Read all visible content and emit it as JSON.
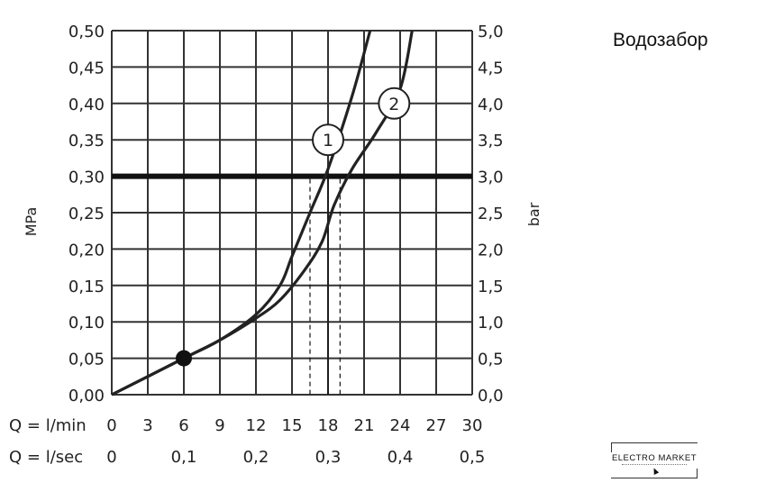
{
  "page": {
    "title": "Водозабор",
    "logo_text": "ELECTRO MARKET"
  },
  "chart_data": {
    "type": "line",
    "title": "",
    "xlabel": "",
    "ylabel_left": "MPa",
    "ylabel_right": "bar",
    "xlim": [
      0,
      30
    ],
    "ylim": [
      0,
      0.5
    ],
    "grid": true,
    "x_axis_rows": [
      {
        "label": "Q = l/min",
        "ticks": [
          "0",
          "3",
          "6",
          "9",
          "12",
          "15",
          "18",
          "21",
          "24",
          "27",
          "30"
        ],
        "values": [
          0,
          3,
          6,
          9,
          12,
          15,
          18,
          21,
          24,
          27,
          30
        ]
      },
      {
        "label": "Q = l/sec",
        "ticks": [
          "0",
          "0,1",
          "0,2",
          "0,3",
          "0,4",
          "0,5"
        ],
        "values": [
          0,
          6,
          12,
          18,
          24,
          30
        ]
      }
    ],
    "y_left_ticks": [
      "0,00",
      "0,05",
      "0,10",
      "0,15",
      "0,20",
      "0,25",
      "0,30",
      "0,35",
      "0,40",
      "0,45",
      "0,50"
    ],
    "y_right_ticks": [
      "0,0",
      "0,5",
      "1,0",
      "1,5",
      "2,0",
      "2,5",
      "3,0",
      "3,5",
      "4,0",
      "4,5",
      "5,0"
    ],
    "y_tick_values": [
      0,
      0.05,
      0.1,
      0.15,
      0.2,
      0.25,
      0.3,
      0.35,
      0.4,
      0.45,
      0.5
    ],
    "reference_line": {
      "y": 0.3
    },
    "series": [
      {
        "name": "1",
        "x": [
          0,
          6,
          9,
          12,
          14,
          15,
          16.5,
          18,
          20,
          21.5
        ],
        "y": [
          0,
          0.05,
          0.075,
          0.11,
          0.15,
          0.19,
          0.25,
          0.31,
          0.41,
          0.5
        ]
      },
      {
        "name": "2",
        "x": [
          0,
          6,
          9,
          12,
          14,
          16,
          17.5,
          18.5,
          20,
          22,
          24,
          25
        ],
        "y": [
          0,
          0.05,
          0.075,
          0.105,
          0.13,
          0.17,
          0.21,
          0.26,
          0.31,
          0.36,
          0.42,
          0.5
        ]
      }
    ],
    "marker_point": {
      "x": 6,
      "y": 0.05
    },
    "drop_lines": [
      {
        "series": "1",
        "x": 16.5
      },
      {
        "series": "2",
        "x": 19.0
      }
    ],
    "series_label_points": [
      {
        "series": "1",
        "x": 18,
        "y": 0.35
      },
      {
        "series": "2",
        "x": 23.5,
        "y": 0.4
      }
    ],
    "center_marker_x": 18
  }
}
